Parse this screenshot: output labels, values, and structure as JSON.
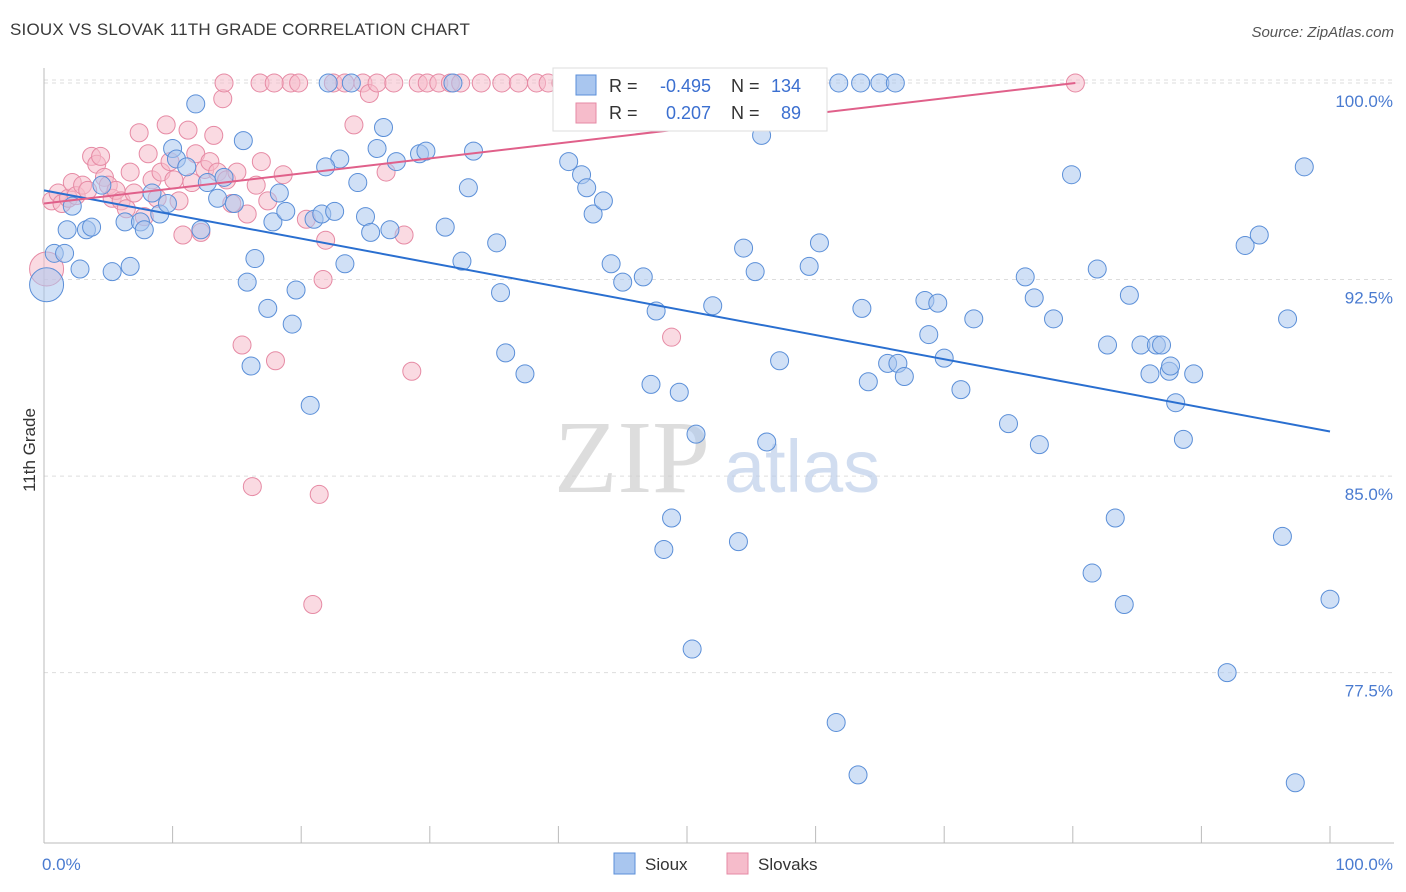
{
  "header": {
    "title": "SIOUX VS SLOVAK 11TH GRADE CORRELATION CHART",
    "source": "Source: ZipAtlas.com"
  },
  "watermark": {
    "zip": "ZIP",
    "atlas": "atlas"
  },
  "colors": {
    "sioux_fill": "#a9c6ef",
    "sioux_stroke": "#5b8fd8",
    "sioux_line": "#2a6fd0",
    "slovaks_fill": "#f6bccb",
    "slovaks_stroke": "#e68aa4",
    "slovaks_line": "#e0608a",
    "tick_text": "#4a7bd0",
    "grid": "#dddddd"
  },
  "stats": {
    "sioux": {
      "r_label": "R =",
      "r": "-0.495",
      "n_label": "N =",
      "n": "134"
    },
    "slovaks": {
      "r_label": "R =",
      "r": "0.207",
      "n_label": "N =",
      "n": "89"
    }
  },
  "chart_data": {
    "type": "scatter",
    "title": "SIOUX VS SLOVAK 11TH GRADE CORRELATION CHART",
    "xlabel": "",
    "ylabel": "11th Grade",
    "xlim": [
      0,
      100
    ],
    "ylim": [
      71.0,
      100.8
    ],
    "x_tick_labels": [
      "0.0%",
      "100.0%"
    ],
    "y_ticks": [
      100.0,
      92.5,
      85.0,
      77.5
    ],
    "y_tick_labels": [
      "100.0%",
      "92.5%",
      "85.0%",
      "77.5%"
    ],
    "grid": "horizontal dashed",
    "legend_placement": "bottom-center",
    "series": [
      {
        "name": "Sioux",
        "trend": {
          "x": [
            0,
            100
          ],
          "y": [
            95.9,
            86.7
          ]
        },
        "points": [
          [
            0.2,
            92.3
          ],
          [
            0.8,
            93.5
          ],
          [
            1.6,
            93.5
          ],
          [
            1.8,
            94.4
          ],
          [
            2.2,
            95.3
          ],
          [
            2.8,
            92.9
          ],
          [
            3.3,
            94.4
          ],
          [
            3.7,
            94.5
          ],
          [
            4.5,
            96.1
          ],
          [
            5.3,
            92.8
          ],
          [
            6.3,
            94.7
          ],
          [
            6.7,
            93.0
          ],
          [
            7.5,
            94.7
          ],
          [
            7.8,
            94.4
          ],
          [
            8.4,
            95.8
          ],
          [
            9.0,
            95.0
          ],
          [
            9.6,
            95.4
          ],
          [
            10.0,
            97.5
          ],
          [
            10.3,
            97.1
          ],
          [
            11.1,
            96.8
          ],
          [
            11.8,
            99.2
          ],
          [
            12.2,
            94.4
          ],
          [
            12.7,
            96.2
          ],
          [
            13.5,
            95.6
          ],
          [
            14.0,
            96.4
          ],
          [
            14.8,
            95.4
          ],
          [
            15.5,
            97.8
          ],
          [
            15.8,
            92.4
          ],
          [
            16.1,
            89.2
          ],
          [
            16.4,
            93.3
          ],
          [
            17.4,
            91.4
          ],
          [
            17.8,
            94.7
          ],
          [
            18.3,
            95.8
          ],
          [
            18.8,
            95.1
          ],
          [
            19.3,
            90.8
          ],
          [
            19.6,
            92.1
          ],
          [
            20.7,
            87.7
          ],
          [
            21.0,
            94.8
          ],
          [
            21.6,
            95.0
          ],
          [
            22.1,
            100.0
          ],
          [
            22.6,
            95.1
          ],
          [
            23.0,
            97.1
          ],
          [
            23.4,
            93.1
          ],
          [
            23.9,
            100.0
          ],
          [
            25.0,
            94.9
          ],
          [
            25.4,
            94.3
          ],
          [
            25.9,
            97.5
          ],
          [
            26.4,
            98.3
          ],
          [
            26.9,
            94.4
          ],
          [
            29.2,
            97.3
          ],
          [
            29.7,
            97.4
          ],
          [
            31.2,
            94.5
          ],
          [
            31.8,
            100.0
          ],
          [
            32.5,
            93.2
          ],
          [
            33.0,
            96.0
          ],
          [
            33.4,
            97.4
          ],
          [
            35.2,
            93.9
          ],
          [
            35.5,
            92.0
          ],
          [
            35.9,
            89.7
          ],
          [
            37.4,
            88.9
          ],
          [
            40.8,
            97.0
          ],
          [
            41.8,
            96.5
          ],
          [
            42.2,
            96.0
          ],
          [
            42.7,
            95.0
          ],
          [
            43.5,
            95.5
          ],
          [
            44.1,
            93.1
          ],
          [
            46.2,
            100.0
          ],
          [
            46.6,
            92.6
          ],
          [
            47.2,
            88.5
          ],
          [
            47.6,
            91.3
          ],
          [
            48.2,
            82.2
          ],
          [
            48.8,
            83.4
          ],
          [
            49.4,
            88.2
          ],
          [
            50.4,
            78.4
          ],
          [
            50.7,
            86.6
          ],
          [
            52.0,
            91.5
          ],
          [
            54.0,
            82.5
          ],
          [
            54.4,
            93.7
          ],
          [
            55.3,
            92.8
          ],
          [
            55.8,
            98.0
          ],
          [
            56.2,
            86.3
          ],
          [
            57.2,
            89.4
          ],
          [
            59.5,
            93.0
          ],
          [
            60.3,
            93.9
          ],
          [
            61.6,
            75.6
          ],
          [
            61.8,
            100.0
          ],
          [
            63.3,
            73.6
          ],
          [
            63.6,
            91.4
          ],
          [
            64.1,
            88.6
          ],
          [
            65.0,
            100.0
          ],
          [
            65.6,
            89.3
          ],
          [
            66.4,
            89.3
          ],
          [
            66.9,
            88.8
          ],
          [
            68.5,
            91.7
          ],
          [
            68.8,
            90.4
          ],
          [
            69.5,
            91.6
          ],
          [
            70.0,
            89.5
          ],
          [
            71.3,
            88.3
          ],
          [
            72.3,
            91.0
          ],
          [
            75.0,
            87.0
          ],
          [
            76.3,
            92.6
          ],
          [
            77.0,
            91.8
          ],
          [
            77.4,
            86.2
          ],
          [
            78.5,
            91.0
          ],
          [
            79.9,
            96.5
          ],
          [
            81.5,
            81.3
          ],
          [
            81.9,
            92.9
          ],
          [
            82.7,
            90.0
          ],
          [
            83.3,
            83.4
          ],
          [
            84.0,
            80.1
          ],
          [
            84.4,
            91.9
          ],
          [
            85.3,
            90.0
          ],
          [
            86.0,
            88.9
          ],
          [
            86.5,
            90.0
          ],
          [
            86.9,
            90.0
          ],
          [
            87.5,
            89.0
          ],
          [
            87.6,
            89.2
          ],
          [
            88.0,
            87.8
          ],
          [
            88.6,
            86.4
          ],
          [
            89.4,
            88.9
          ],
          [
            92.0,
            77.5
          ],
          [
            93.4,
            93.8
          ],
          [
            94.5,
            94.2
          ],
          [
            96.3,
            82.7
          ],
          [
            96.7,
            91.0
          ],
          [
            97.3,
            73.3
          ],
          [
            98.0,
            96.8
          ],
          [
            100.0,
            80.3
          ],
          [
            63.5,
            100.0
          ],
          [
            66.2,
            100.0
          ],
          [
            21.9,
            96.8
          ],
          [
            27.4,
            97.0
          ],
          [
            45.0,
            92.4
          ],
          [
            24.4,
            96.2
          ]
        ]
      },
      {
        "name": "Slovaks",
        "trend": {
          "x": [
            0,
            80.2
          ],
          "y": [
            95.4,
            100.0
          ]
        },
        "points": [
          [
            0.2,
            92.9
          ],
          [
            0.6,
            95.5
          ],
          [
            1.1,
            95.8
          ],
          [
            1.4,
            95.4
          ],
          [
            1.9,
            95.6
          ],
          [
            2.2,
            96.2
          ],
          [
            2.5,
            95.7
          ],
          [
            3.0,
            96.1
          ],
          [
            3.4,
            95.9
          ],
          [
            3.7,
            97.2
          ],
          [
            4.1,
            96.9
          ],
          [
            4.4,
            97.2
          ],
          [
            4.7,
            96.4
          ],
          [
            5.0,
            96.1
          ],
          [
            5.3,
            95.6
          ],
          [
            5.6,
            95.9
          ],
          [
            6.0,
            95.5
          ],
          [
            6.4,
            95.2
          ],
          [
            6.7,
            96.6
          ],
          [
            7.0,
            95.8
          ],
          [
            7.4,
            98.1
          ],
          [
            7.8,
            94.9
          ],
          [
            8.1,
            97.3
          ],
          [
            8.4,
            96.3
          ],
          [
            8.8,
            95.6
          ],
          [
            9.1,
            96.6
          ],
          [
            9.5,
            98.4
          ],
          [
            9.8,
            97.0
          ],
          [
            10.1,
            96.3
          ],
          [
            10.5,
            95.5
          ],
          [
            10.8,
            94.2
          ],
          [
            11.2,
            98.2
          ],
          [
            11.5,
            96.2
          ],
          [
            11.8,
            97.3
          ],
          [
            12.2,
            94.3
          ],
          [
            12.5,
            96.7
          ],
          [
            12.9,
            97.0
          ],
          [
            13.2,
            98.0
          ],
          [
            13.5,
            96.6
          ],
          [
            13.9,
            99.4
          ],
          [
            14.2,
            96.3
          ],
          [
            14.6,
            95.4
          ],
          [
            15.0,
            96.6
          ],
          [
            15.4,
            90.0
          ],
          [
            15.8,
            95.0
          ],
          [
            16.2,
            84.6
          ],
          [
            16.5,
            96.1
          ],
          [
            16.9,
            97.0
          ],
          [
            17.4,
            95.5
          ],
          [
            18.0,
            89.4
          ],
          [
            18.6,
            96.5
          ],
          [
            19.2,
            100.0
          ],
          [
            19.8,
            100.0
          ],
          [
            20.4,
            94.8
          ],
          [
            20.9,
            80.1
          ],
          [
            21.4,
            84.3
          ],
          [
            21.7,
            92.5
          ],
          [
            21.9,
            94.0
          ],
          [
            22.5,
            100.0
          ],
          [
            23.4,
            100.0
          ],
          [
            24.1,
            98.4
          ],
          [
            24.8,
            100.0
          ],
          [
            25.3,
            99.6
          ],
          [
            25.9,
            100.0
          ],
          [
            26.6,
            96.6
          ],
          [
            27.2,
            100.0
          ],
          [
            28.0,
            94.2
          ],
          [
            28.6,
            89.0
          ],
          [
            29.1,
            100.0
          ],
          [
            29.8,
            100.0
          ],
          [
            30.7,
            100.0
          ],
          [
            31.6,
            100.0
          ],
          [
            32.4,
            100.0
          ],
          [
            34.0,
            100.0
          ],
          [
            35.6,
            100.0
          ],
          [
            36.9,
            100.0
          ],
          [
            38.3,
            100.0
          ],
          [
            39.2,
            100.0
          ],
          [
            40.2,
            100.0
          ],
          [
            41.7,
            100.0
          ],
          [
            48.8,
            90.3
          ],
          [
            51.6,
            100.0
          ],
          [
            54.4,
            100.0
          ],
          [
            56.8,
            100.0
          ],
          [
            60.2,
            100.0
          ],
          [
            14.0,
            100.0
          ],
          [
            16.8,
            100.0
          ],
          [
            17.9,
            100.0
          ],
          [
            80.2,
            100.0
          ]
        ]
      }
    ]
  },
  "legend": {
    "items": [
      "Sioux",
      "Slovaks"
    ]
  }
}
